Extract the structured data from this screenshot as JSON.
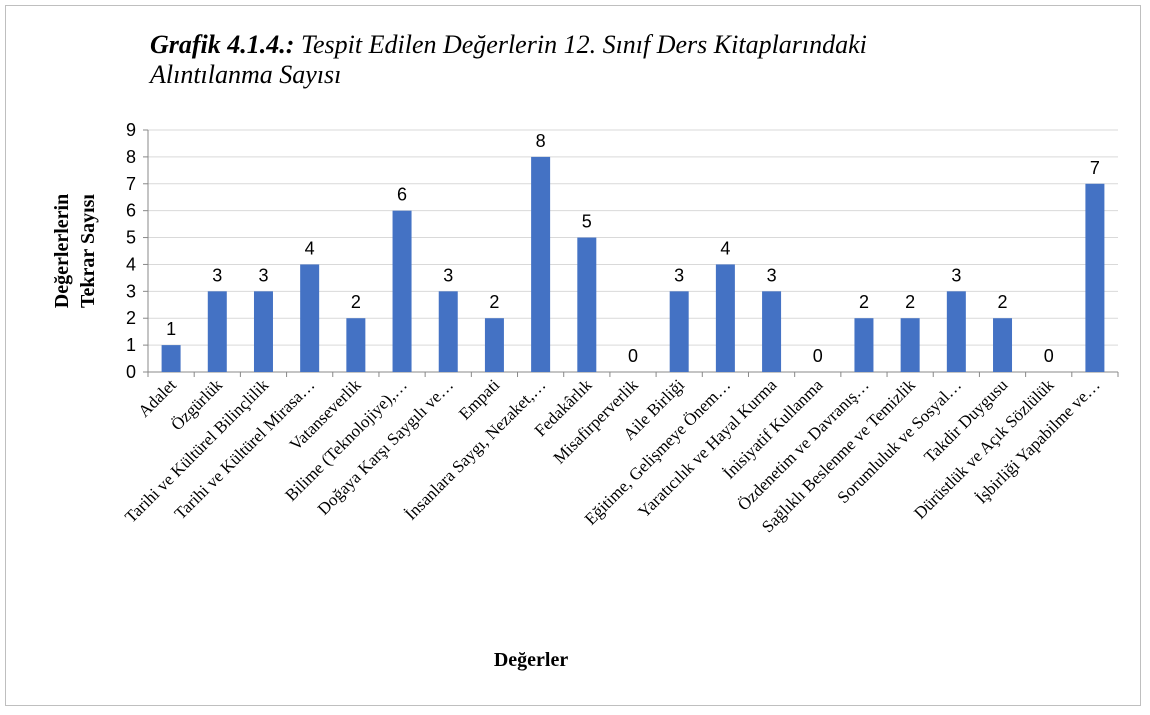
{
  "chart_data": {
    "type": "bar",
    "title_number": "Grafik 4.1.4.:",
    "title": "Tespit Edilen Değerlerin 12. Sınıf Ders Kitaplarındaki Alıntılanma Sayısı",
    "ylabel": [
      "Değerlerlerin",
      "Tekrar Sayısı"
    ],
    "xlabel": "Değerler",
    "categories": [
      "Adalet",
      "Özgürlük",
      "Tarihi ve Kültürel Bilinçlilik",
      "Tarihi ve Kültürel Mirasa…",
      "Vatanseverlik",
      "Bilime (Teknolojiye),…",
      "Doğaya Karşı Saygılı ve…",
      "Empati",
      "İnsanlara Saygı, Nezaket,…",
      "Fedakârlık",
      "Misafirperverlik",
      "Aile Birliği",
      "Eğitime, Gelişmeye Önem…",
      "Yaratıcılık ve Hayal Kurma",
      "İnisiyatif Kullanma",
      "Özdenetim ve Davranış…",
      "Sağlıklı Beslenme ve Temizlik",
      "Sorumluluk ve Sosyal…",
      "Takdir Duygusu",
      "Dürüstlük ve Açık Sözlülük",
      "İşbirliği Yapabilme ve…"
    ],
    "values": [
      1,
      3,
      3,
      4,
      2,
      6,
      3,
      2,
      8,
      5,
      0,
      3,
      4,
      3,
      0,
      2,
      2,
      3,
      2,
      0,
      7
    ],
    "color": "#4472c4",
    "ylim": [
      0,
      9
    ],
    "yticks": [
      0,
      1,
      2,
      3,
      4,
      5,
      6,
      7,
      8,
      9
    ],
    "grid": true
  }
}
